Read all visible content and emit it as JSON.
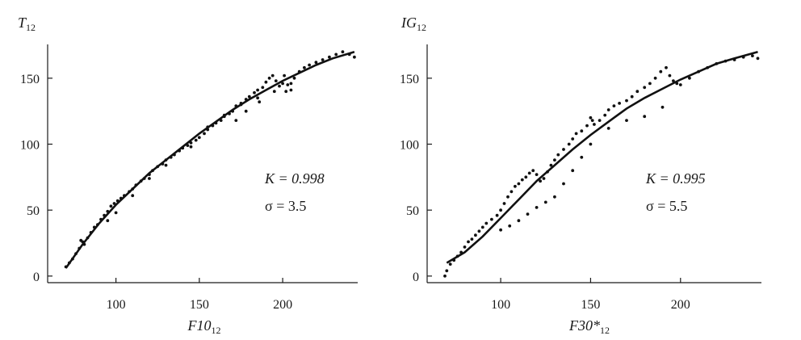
{
  "chart_data": [
    {
      "type": "scatter",
      "ylabel_main": "T",
      "ylabel_sub": "12",
      "xlabel_main": "F10",
      "xlabel_sub": "12",
      "xlim": [
        60,
        245
      ],
      "ylim": [
        -5,
        175
      ],
      "xticks": [
        100,
        150,
        200
      ],
      "yticks": [
        0,
        50,
        100,
        150
      ],
      "tick_labels_x": [
        "100",
        "150",
        "200"
      ],
      "tick_labels_y": [
        "0",
        "50",
        "100",
        "150"
      ],
      "annotation_k": "K = 0.998",
      "annotation_sigma": "σ = 3.5",
      "fit": {
        "x": [
          70,
          80,
          90,
          100,
          110,
          120,
          130,
          140,
          150,
          160,
          170,
          180,
          190,
          200,
          210,
          220,
          230,
          243
        ],
        "y": [
          6,
          24,
          40,
          54,
          66,
          78,
          88,
          98,
          108,
          117,
          126,
          134,
          141,
          148,
          154,
          160,
          165,
          170
        ]
      },
      "points": {
        "x": [
          70,
          72,
          74,
          76,
          78,
          79,
          80,
          81,
          83,
          85,
          87,
          89,
          91,
          93,
          95,
          97,
          99,
          101,
          103,
          105,
          108,
          110,
          112,
          115,
          117,
          120,
          122,
          125,
          128,
          130,
          133,
          135,
          138,
          140,
          143,
          145,
          148,
          150,
          153,
          155,
          158,
          160,
          163,
          165,
          168,
          170,
          172,
          175,
          178,
          180,
          183,
          185,
          188,
          190,
          192,
          194,
          196,
          198,
          200,
          201,
          202,
          203,
          205,
          207,
          210,
          213,
          216,
          220,
          224,
          228,
          232,
          236,
          240,
          243,
          95,
          100,
          110,
          120,
          130,
          145,
          155,
          165,
          175,
          185,
          195,
          205,
          172,
          178,
          186
        ],
        "y": [
          7,
          10,
          13,
          17,
          21,
          27,
          26,
          24,
          29,
          33,
          37,
          39,
          43,
          46,
          49,
          53,
          55,
          57,
          59,
          61,
          64,
          66,
          69,
          72,
          74,
          77,
          80,
          83,
          85,
          88,
          90,
          92,
          95,
          97,
          99,
          101,
          103,
          105,
          108,
          111,
          114,
          116,
          118,
          121,
          123,
          125,
          129,
          131,
          134,
          136,
          139,
          141,
          143,
          147,
          150,
          152,
          148,
          144,
          146,
          152,
          140,
          145,
          141,
          150,
          155,
          158,
          160,
          162,
          164,
          166,
          168,
          170,
          168,
          166,
          42,
          48,
          61,
          74,
          84,
          98,
          113,
          122,
          130,
          135,
          140,
          146,
          118,
          125,
          132
        ]
      }
    },
    {
      "type": "scatter",
      "ylabel_main": "IG",
      "ylabel_sub": "12",
      "xlabel_main": "F30*",
      "xlabel_sub": "12",
      "xlim": [
        60,
        245
      ],
      "ylim": [
        -5,
        175
      ],
      "xticks": [
        100,
        150,
        200
      ],
      "yticks": [
        0,
        50,
        100,
        150
      ],
      "tick_labels_x": [
        "100",
        "150",
        "200"
      ],
      "tick_labels_y": [
        "0",
        "50",
        "100",
        "150"
      ],
      "annotation_k": "K = 0.995",
      "annotation_sigma": "σ = 5.5",
      "fit": {
        "x": [
          70,
          80,
          90,
          100,
          110,
          120,
          130,
          140,
          150,
          160,
          170,
          180,
          190,
          200,
          210,
          220,
          230,
          243
        ],
        "y": [
          10,
          18,
          30,
          44,
          58,
          72,
          84,
          96,
          107,
          117,
          127,
          135,
          142,
          149,
          155,
          161,
          165,
          170
        ]
      },
      "points": {
        "x": [
          69,
          70,
          72,
          74,
          76,
          78,
          80,
          82,
          84,
          86,
          88,
          90,
          92,
          95,
          98,
          100,
          102,
          104,
          106,
          108,
          110,
          112,
          114,
          116,
          118,
          120,
          122,
          124,
          126,
          128,
          130,
          132,
          135,
          138,
          140,
          142,
          145,
          148,
          150,
          151,
          152,
          155,
          158,
          160,
          163,
          166,
          170,
          173,
          176,
          180,
          183,
          186,
          189,
          192,
          194,
          196,
          198,
          200,
          205,
          210,
          215,
          220,
          225,
          230,
          235,
          240,
          243,
          100,
          105,
          110,
          115,
          120,
          125,
          130,
          135,
          140,
          145,
          150,
          160,
          170,
          180,
          190
        ],
        "y": [
          0,
          4,
          9,
          12,
          15,
          18,
          22,
          26,
          28,
          31,
          34,
          37,
          40,
          43,
          46,
          50,
          55,
          60,
          64,
          68,
          70,
          73,
          75,
          78,
          80,
          77,
          72,
          74,
          79,
          84,
          88,
          92,
          96,
          100,
          104,
          108,
          110,
          114,
          120,
          118,
          115,
          118,
          122,
          126,
          129,
          131,
          133,
          136,
          140,
          143,
          146,
          150,
          155,
          158,
          152,
          148,
          146,
          145,
          150,
          155,
          158,
          161,
          163,
          164,
          166,
          167,
          165,
          35,
          38,
          42,
          47,
          52,
          56,
          60,
          70,
          80,
          90,
          100,
          112,
          118,
          121,
          128
        ]
      }
    }
  ]
}
